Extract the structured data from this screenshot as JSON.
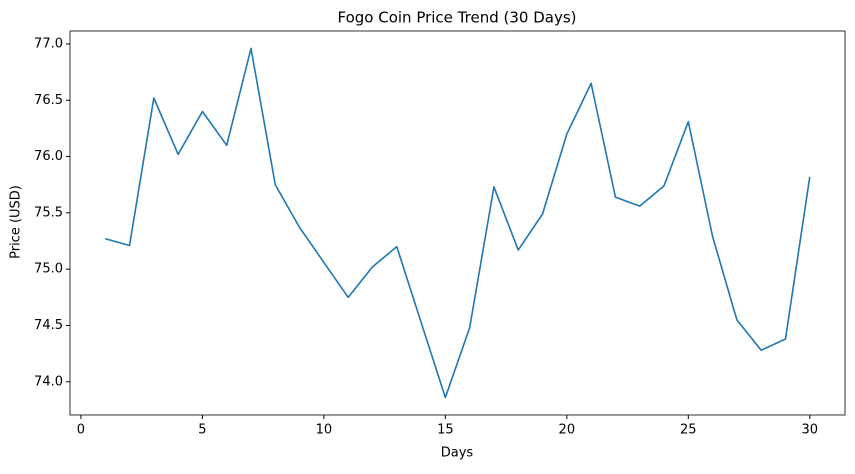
{
  "chart_data": {
    "type": "line",
    "title": "Fogo Coin Price Trend (30 Days)",
    "xlabel": "Days",
    "ylabel": "Price (USD)",
    "x": [
      1,
      2,
      3,
      4,
      5,
      6,
      7,
      8,
      9,
      10,
      11,
      12,
      13,
      14,
      15,
      16,
      17,
      18,
      19,
      20,
      21,
      22,
      23,
      24,
      25,
      26,
      27,
      28,
      29,
      30
    ],
    "series": [
      {
        "color": "#1f77b4",
        "values": [
          75.27,
          75.21,
          76.52,
          76.02,
          76.4,
          76.1,
          76.96,
          75.75,
          75.37,
          75.06,
          74.75,
          75.02,
          75.2,
          74.53,
          73.86,
          74.48,
          75.73,
          75.17,
          75.49,
          76.2,
          76.65,
          75.64,
          75.56,
          75.74,
          76.31,
          75.29,
          74.55,
          74.28,
          74.38,
          75.82
        ]
      }
    ],
    "xlim": [
      -0.45,
      31.45
    ],
    "xticks": [
      0,
      5,
      10,
      15,
      20,
      25,
      30
    ],
    "ylim": [
      73.705,
      77.115
    ],
    "yticks": [
      {
        "value": 74,
        "label": "74.0"
      },
      {
        "value": 74.5,
        "label": "74.5"
      },
      {
        "value": 75,
        "label": "75.0"
      },
      {
        "value": 75.5,
        "label": "75.5"
      },
      {
        "value": 76,
        "label": "76.0"
      },
      {
        "value": 76.5,
        "label": "76.5"
      },
      {
        "value": 77,
        "label": "77.0"
      }
    ],
    "grid": false
  }
}
